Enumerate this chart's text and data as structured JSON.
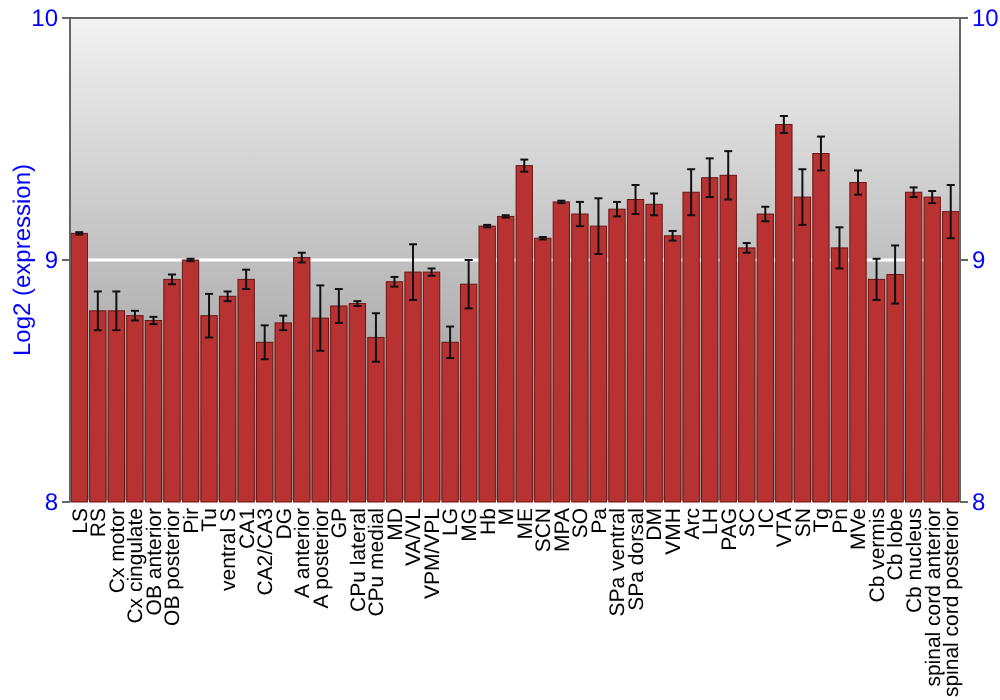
{
  "chart_data": {
    "type": "bar",
    "ylabel": "Log2 (expression)",
    "categories": [
      "LS",
      "RS",
      "Cx motor",
      "Cx cingulate",
      "OB anterior",
      "OB posterior",
      "Pir",
      "Tu",
      "ventral S",
      "CA1",
      "CA2/CA3",
      "DG",
      "A anterior",
      "A posterior",
      "GP",
      "CPu lateral",
      "CPu medial",
      "MD",
      "VA/VL",
      "VPM/VPL",
      "LG",
      "MG",
      "Hb",
      "M",
      "ME",
      "SCN",
      "MPA",
      "SO",
      "Pa",
      "SPa ventral",
      "SPa dorsal",
      "DM",
      "VMH",
      "Arc",
      "LH",
      "PAG",
      "SC",
      "IC",
      "VTA",
      "SN",
      "Tg",
      "Pn",
      "MVe",
      "Cb vermis",
      "Cb lobe",
      "Cb nucleus",
      "spinal cord anterior",
      "spinal cord posterior"
    ],
    "values": [
      9.11,
      8.79,
      8.79,
      8.77,
      8.75,
      8.92,
      9.0,
      8.77,
      8.85,
      8.92,
      8.66,
      8.74,
      9.01,
      8.76,
      8.81,
      8.82,
      8.68,
      8.91,
      8.95,
      8.95,
      8.66,
      8.9,
      9.14,
      9.18,
      9.39,
      9.09,
      9.24,
      9.19,
      9.14,
      9.21,
      9.25,
      9.23,
      9.1,
      9.28,
      9.34,
      9.35,
      9.05,
      9.19,
      9.56,
      9.26,
      9.44,
      9.05,
      9.32,
      8.92,
      8.94,
      9.28,
      9.26,
      9.2
    ],
    "errors": [
      0.005,
      0.08,
      0.08,
      0.02,
      0.015,
      0.02,
      0.005,
      0.09,
      0.02,
      0.04,
      0.07,
      0.03,
      0.02,
      0.135,
      0.07,
      0.01,
      0.1,
      0.02,
      0.115,
      0.015,
      0.065,
      0.1,
      0.005,
      0.005,
      0.025,
      0.005,
      0.005,
      0.05,
      0.115,
      0.03,
      0.06,
      0.045,
      0.02,
      0.095,
      0.08,
      0.1,
      0.02,
      0.03,
      0.035,
      0.115,
      0.07,
      0.085,
      0.05,
      0.085,
      0.12,
      0.02,
      0.025,
      0.11
    ],
    "color": "#b83232",
    "ylim": [
      8,
      10
    ],
    "yticks": [
      8,
      9,
      10
    ],
    "y2lim": [
      8,
      10
    ],
    "y2ticks": [
      8,
      9,
      10
    ],
    "grid": "y"
  }
}
